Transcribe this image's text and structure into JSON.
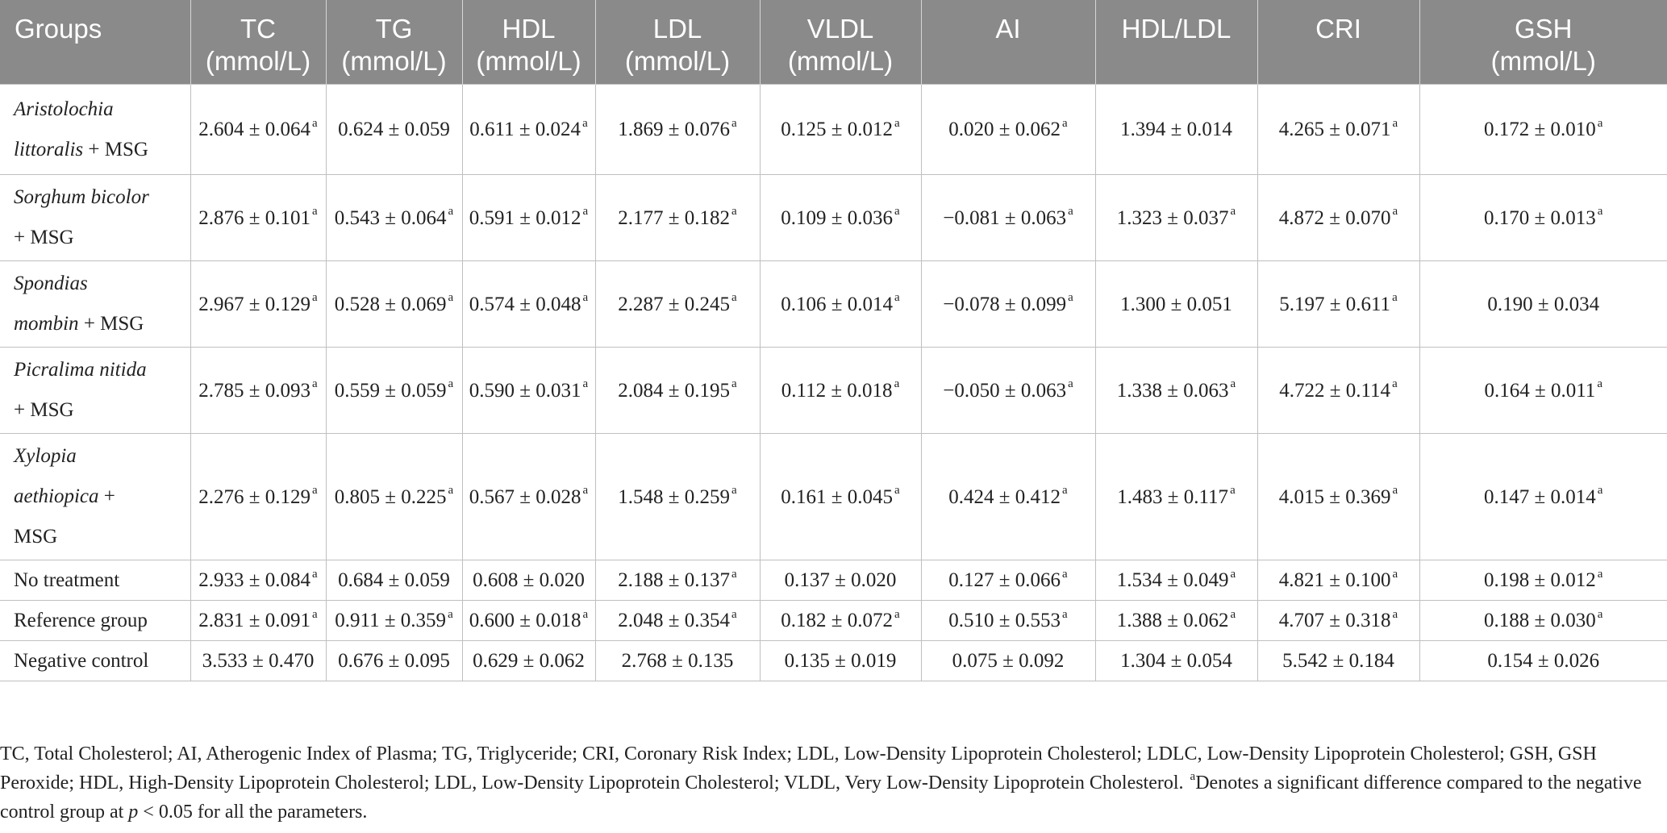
{
  "table": {
    "columns": [
      {
        "line1": "Groups",
        "line2": ""
      },
      {
        "line1": "TC",
        "line2": "(mmol/L)"
      },
      {
        "line1": "TG",
        "line2": "(mmol/L)"
      },
      {
        "line1": "HDL",
        "line2": "(mmol/L)"
      },
      {
        "line1": "LDL",
        "line2": "(mmol/L)"
      },
      {
        "line1": "VLDL",
        "line2": "(mmol/L)"
      },
      {
        "line1": "AI",
        "line2": ""
      },
      {
        "line1": "HDL/LDL",
        "line2": ""
      },
      {
        "line1": "CRI",
        "line2": ""
      },
      {
        "line1": "GSH",
        "line2": "(mmol/L)"
      }
    ],
    "rows": [
      {
        "group": [
          {
            "text": "Aristolochia",
            "italic": true
          },
          {
            "text": "littoralis",
            "italic": true,
            "suffix": " + MSG"
          }
        ],
        "cells": [
          {
            "v": "2.604 ± 0.064",
            "s": "a"
          },
          {
            "v": "0.624 ± 0.059",
            "s": ""
          },
          {
            "v": "0.611 ± 0.024",
            "s": "a"
          },
          {
            "v": "1.869 ± 0.076",
            "s": "a"
          },
          {
            "v": "0.125 ± 0.012",
            "s": "a"
          },
          {
            "v": "0.020 ± 0.062",
            "s": "a"
          },
          {
            "v": "1.394 ± 0.014",
            "s": ""
          },
          {
            "v": "4.265 ± 0.071",
            "s": "a"
          },
          {
            "v": "0.172 ± 0.010",
            "s": "a"
          }
        ]
      },
      {
        "group": [
          {
            "text": "Sorghum bicolor",
            "italic": true
          },
          {
            "text": "",
            "italic": false,
            "suffix": "+ MSG"
          }
        ],
        "cells": [
          {
            "v": "2.876 ± 0.101",
            "s": "a"
          },
          {
            "v": "0.543 ± 0.064",
            "s": "a"
          },
          {
            "v": "0.591 ± 0.012",
            "s": "a"
          },
          {
            "v": "2.177 ± 0.182",
            "s": "a"
          },
          {
            "v": "0.109 ± 0.036",
            "s": "a"
          },
          {
            "v": "−0.081 ± 0.063",
            "s": "a"
          },
          {
            "v": "1.323 ± 0.037",
            "s": "a"
          },
          {
            "v": "4.872 ± 0.070",
            "s": "a"
          },
          {
            "v": "0.170 ± 0.013",
            "s": "a"
          }
        ]
      },
      {
        "group": [
          {
            "text": "Spondias",
            "italic": true
          },
          {
            "text": "mombin",
            "italic": true,
            "suffix": " + MSG"
          }
        ],
        "cells": [
          {
            "v": "2.967 ± 0.129",
            "s": "a"
          },
          {
            "v": "0.528 ± 0.069",
            "s": "a"
          },
          {
            "v": "0.574 ± 0.048",
            "s": "a"
          },
          {
            "v": "2.287 ± 0.245",
            "s": "a"
          },
          {
            "v": "0.106 ± 0.014",
            "s": "a"
          },
          {
            "v": "−0.078 ± 0.099",
            "s": "a"
          },
          {
            "v": "1.300 ± 0.051",
            "s": ""
          },
          {
            "v": "5.197 ± 0.611",
            "s": "a"
          },
          {
            "v": "0.190 ± 0.034",
            "s": ""
          }
        ]
      },
      {
        "group": [
          {
            "text": "Picralima nitida",
            "italic": true
          },
          {
            "text": "",
            "italic": false,
            "suffix": "+ MSG"
          }
        ],
        "cells": [
          {
            "v": "2.785 ± 0.093",
            "s": "a"
          },
          {
            "v": "0.559 ± 0.059",
            "s": "a"
          },
          {
            "v": "0.590 ± 0.031",
            "s": "a"
          },
          {
            "v": "2.084 ± 0.195",
            "s": "a"
          },
          {
            "v": "0.112 ± 0.018",
            "s": "a"
          },
          {
            "v": "−0.050 ± 0.063",
            "s": "a"
          },
          {
            "v": "1.338 ± 0.063",
            "s": "a"
          },
          {
            "v": "4.722 ± 0.114",
            "s": "a"
          },
          {
            "v": "0.164 ± 0.011",
            "s": "a"
          }
        ]
      },
      {
        "group": [
          {
            "text": "Xylopia",
            "italic": true
          },
          {
            "text": "aethiopica",
            "italic": true,
            "suffix": " +"
          },
          {
            "text": "",
            "italic": false,
            "suffix": "MSG"
          }
        ],
        "cells": [
          {
            "v": "2.276 ± 0.129",
            "s": "a"
          },
          {
            "v": "0.805 ± 0.225",
            "s": "a"
          },
          {
            "v": "0.567 ± 0.028",
            "s": "a"
          },
          {
            "v": "1.548 ± 0.259",
            "s": "a"
          },
          {
            "v": "0.161 ± 0.045",
            "s": "a"
          },
          {
            "v": "0.424 ± 0.412",
            "s": "a"
          },
          {
            "v": "1.483 ± 0.117",
            "s": "a"
          },
          {
            "v": "4.015 ± 0.369",
            "s": "a"
          },
          {
            "v": "0.147 ± 0.014",
            "s": "a"
          }
        ]
      },
      {
        "group": [
          {
            "text": "No treatment",
            "italic": false
          }
        ],
        "cells": [
          {
            "v": "2.933 ± 0.084",
            "s": "a"
          },
          {
            "v": "0.684 ± 0.059",
            "s": ""
          },
          {
            "v": "0.608 ± 0.020",
            "s": ""
          },
          {
            "v": "2.188 ± 0.137",
            "s": "a"
          },
          {
            "v": "0.137 ± 0.020",
            "s": ""
          },
          {
            "v": "0.127 ± 0.066",
            "s": "a"
          },
          {
            "v": "1.534 ± 0.049",
            "s": "a"
          },
          {
            "v": "4.821 ± 0.100",
            "s": "a"
          },
          {
            "v": "0.198 ± 0.012",
            "s": "a"
          }
        ]
      },
      {
        "group": [
          {
            "text": "Reference group",
            "italic": false
          }
        ],
        "cells": [
          {
            "v": "2.831 ± 0.091",
            "s": "a"
          },
          {
            "v": "0.911 ± 0.359",
            "s": "a"
          },
          {
            "v": "0.600 ± 0.018",
            "s": "a"
          },
          {
            "v": "2.048 ± 0.354",
            "s": "a"
          },
          {
            "v": "0.182 ± 0.072",
            "s": "a"
          },
          {
            "v": "0.510 ± 0.553",
            "s": "a"
          },
          {
            "v": "1.388 ± 0.062",
            "s": "a"
          },
          {
            "v": "4.707 ± 0.318",
            "s": "a"
          },
          {
            "v": "0.188 ± 0.030",
            "s": "a"
          }
        ]
      },
      {
        "group": [
          {
            "text": "Negative control",
            "italic": false
          }
        ],
        "cells": [
          {
            "v": "3.533 ± 0.470",
            "s": ""
          },
          {
            "v": "0.676 ± 0.095",
            "s": ""
          },
          {
            "v": "0.629 ± 0.062",
            "s": ""
          },
          {
            "v": "2.768 ± 0.135",
            "s": ""
          },
          {
            "v": "0.135 ± 0.019",
            "s": ""
          },
          {
            "v": "0.075 ± 0.092",
            "s": ""
          },
          {
            "v": "1.304 ± 0.054",
            "s": ""
          },
          {
            "v": "5.542 ± 0.184",
            "s": ""
          },
          {
            "v": "0.154 ± 0.026",
            "s": ""
          }
        ]
      }
    ]
  },
  "footnote": {
    "text": "TC, Total Cholesterol; AI, Atherogenic Index of Plasma; TG, Triglyceride; CRI, Coronary Risk Index; LDL, Low-Density Lipoprotein Cholesterol; LDLC, Low-Density Lipoprotein Cholesterol; GSH, GSH Peroxide; HDL, High-Density Lipoprotein Cholesterol; LDL, Low-Density Lipoprotein Cholesterol; VLDL, Very Low-Density Lipoprotein Cholesterol. ",
    "marker": "a",
    "note_pre": "Denotes a significant difference compared to the negative control group at ",
    "note_p": "p",
    "note_post": " < 0.05 for all the parameters."
  }
}
